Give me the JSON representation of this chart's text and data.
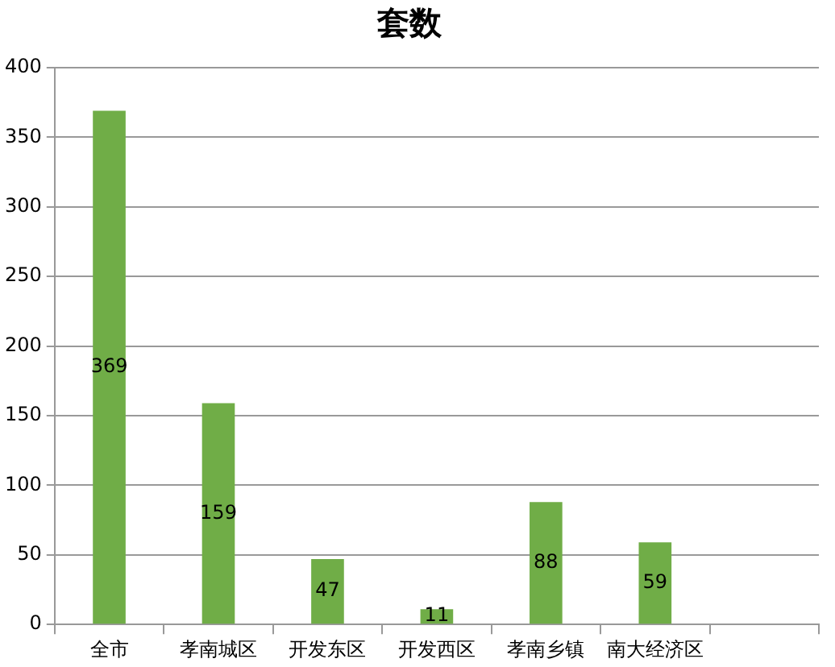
{
  "chart_data": {
    "type": "bar",
    "title": "套数",
    "categories": [
      "全市",
      "孝南城区",
      "开发东区",
      "开发西区",
      "孝南乡镇",
      "南大经济区",
      null
    ],
    "values": [
      369,
      159,
      47,
      11,
      88,
      59,
      null
    ],
    "color": "#70ad47",
    "ylim": [
      0,
      400
    ],
    "yticks": [
      0,
      50,
      100,
      150,
      200,
      250,
      300,
      350,
      400
    ],
    "grid": "y",
    "data_labels": true,
    "legend": false
  }
}
